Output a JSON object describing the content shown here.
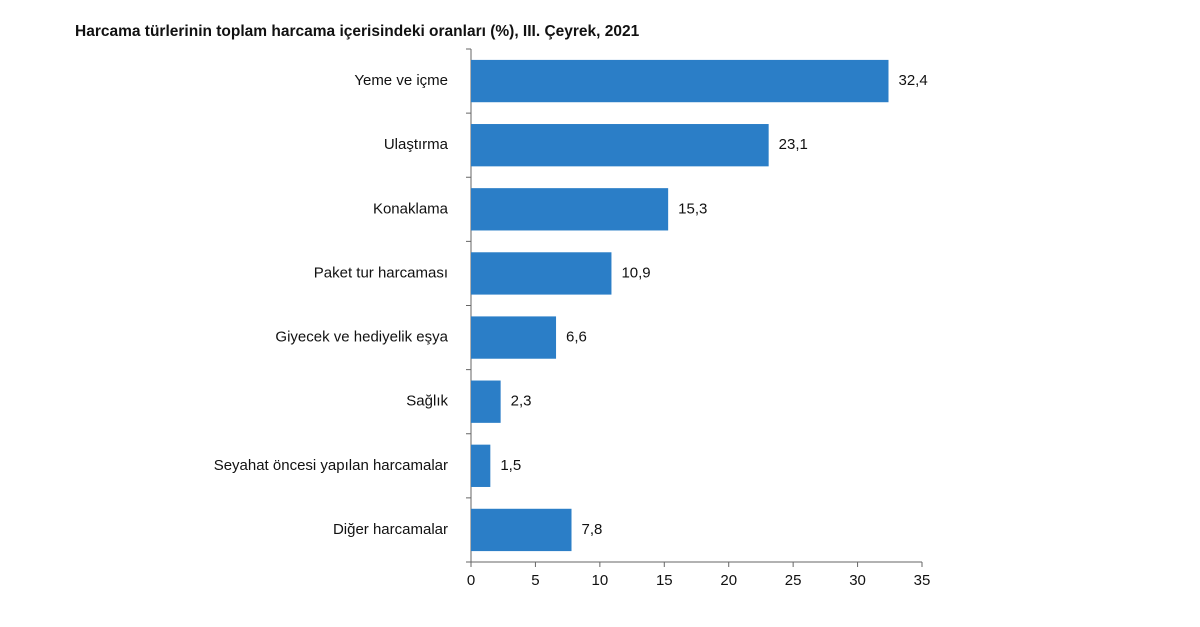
{
  "chart_data": {
    "type": "bar",
    "orientation": "horizontal",
    "title": "Harcama türlerinin toplam harcama içerisindeki oranları (%), III. Çeyrek, 2021",
    "categories": [
      "Yeme ve içme",
      "Ulaştırma",
      "Konaklama",
      "Paket tur harcaması",
      "Giyecek ve hediyelik eşya",
      "Sağlık",
      "Seyahat öncesi yapılan harcamalar",
      "Diğer harcamalar"
    ],
    "values": [
      32.4,
      23.1,
      15.3,
      10.9,
      6.6,
      2.3,
      1.5,
      7.8
    ],
    "value_labels": [
      "32,4",
      "23,1",
      "15,3",
      "10,9",
      "6,6",
      "2,3",
      "1,5",
      "7,8"
    ],
    "color": "#2b7ec7",
    "xlim": [
      0,
      35
    ],
    "xticks": [
      0,
      5,
      10,
      15,
      20,
      25,
      30,
      35
    ],
    "grid": false
  }
}
